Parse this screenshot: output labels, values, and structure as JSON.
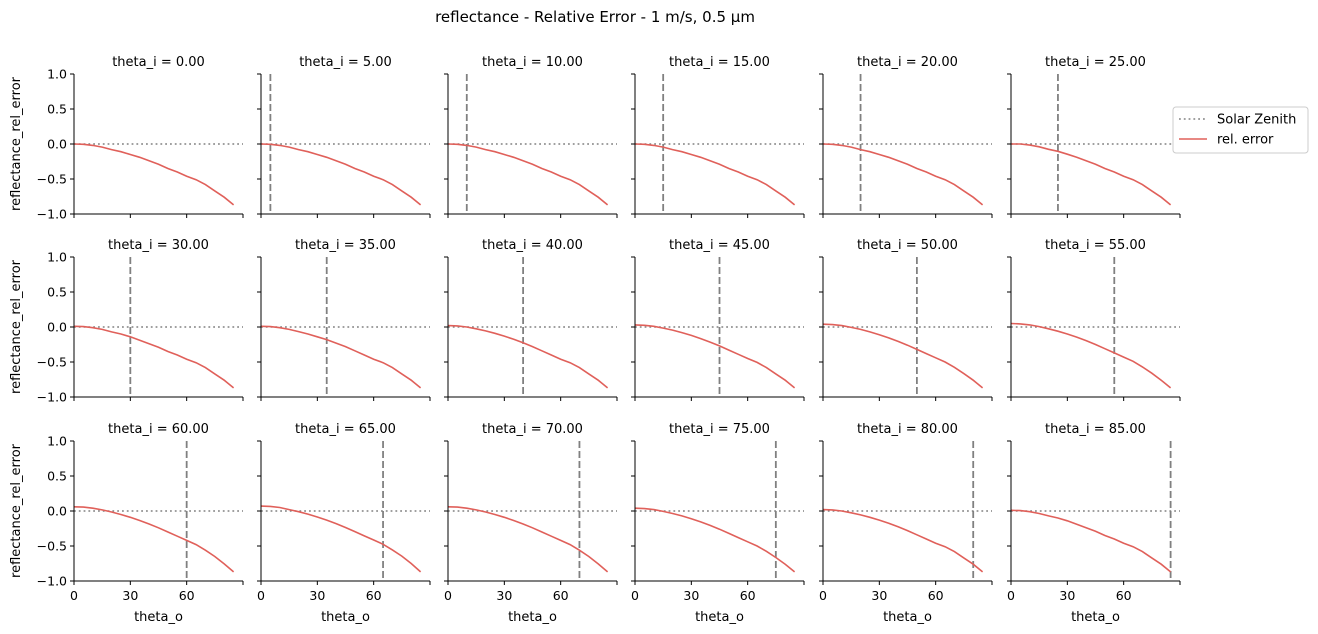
{
  "figure": {
    "title": "reflectance - Relative Error - 1 m/s, 0.5 µm"
  },
  "legend": {
    "placement": "right",
    "entries": [
      {
        "label": "Solar Zenith",
        "style": "dotted",
        "color": "#808080"
      },
      {
        "label": "rel. error",
        "style": "solid",
        "color": "#e0605a"
      }
    ]
  },
  "colors": {
    "error_line": "#e0605a",
    "reference_line": "#808080",
    "axis": "#000000"
  },
  "chart_data": {
    "type": "line",
    "layout": {
      "rows": 3,
      "cols": 6
    },
    "xlabel": "theta_o",
    "ylabel": "reflectance_rel_error",
    "xlim": [
      0,
      90
    ],
    "ylim": [
      -1.0,
      1.0
    ],
    "xticks": [
      0,
      30,
      60
    ],
    "yticks": [
      1.0,
      0.5,
      0.0,
      -0.5,
      -1.0
    ],
    "ytick_labels": [
      "1.0",
      "0.5",
      "0.0",
      "−0.5",
      "−1.0"
    ],
    "grid": false,
    "x": [
      0,
      5,
      10,
      15,
      20,
      25,
      30,
      35,
      40,
      45,
      50,
      55,
      60,
      65,
      70,
      75,
      80,
      85
    ],
    "zero_reference": 0.0,
    "panels": [
      {
        "title": "theta_i = 0.00",
        "theta_i": 0,
        "values": [
          0.0,
          -0.005,
          -0.02,
          -0.045,
          -0.08,
          -0.11,
          -0.15,
          -0.19,
          -0.24,
          -0.29,
          -0.35,
          -0.4,
          -0.46,
          -0.51,
          -0.58,
          -0.67,
          -0.76,
          -0.87
        ]
      },
      {
        "title": "theta_i = 5.00",
        "theta_i": 5,
        "values": [
          0.0,
          -0.005,
          -0.02,
          -0.045,
          -0.08,
          -0.11,
          -0.15,
          -0.19,
          -0.24,
          -0.29,
          -0.35,
          -0.4,
          -0.46,
          -0.51,
          -0.58,
          -0.67,
          -0.76,
          -0.87
        ]
      },
      {
        "title": "theta_i = 10.00",
        "theta_i": 10,
        "values": [
          0.0,
          -0.005,
          -0.02,
          -0.045,
          -0.08,
          -0.11,
          -0.15,
          -0.19,
          -0.24,
          -0.29,
          -0.35,
          -0.4,
          -0.46,
          -0.51,
          -0.58,
          -0.67,
          -0.76,
          -0.87
        ]
      },
      {
        "title": "theta_i = 15.00",
        "theta_i": 15,
        "values": [
          0.0,
          -0.005,
          -0.02,
          -0.045,
          -0.08,
          -0.11,
          -0.15,
          -0.19,
          -0.24,
          -0.29,
          -0.35,
          -0.4,
          -0.46,
          -0.51,
          -0.58,
          -0.67,
          -0.76,
          -0.87
        ]
      },
      {
        "title": "theta_i = 20.00",
        "theta_i": 20,
        "values": [
          0.0,
          -0.005,
          -0.02,
          -0.045,
          -0.08,
          -0.11,
          -0.15,
          -0.19,
          -0.24,
          -0.29,
          -0.35,
          -0.4,
          -0.46,
          -0.51,
          -0.58,
          -0.67,
          -0.76,
          -0.87
        ]
      },
      {
        "title": "theta_i = 25.00",
        "theta_i": 25,
        "values": [
          0.0,
          0.0,
          -0.015,
          -0.04,
          -0.075,
          -0.105,
          -0.145,
          -0.19,
          -0.24,
          -0.29,
          -0.35,
          -0.4,
          -0.46,
          -0.51,
          -0.58,
          -0.67,
          -0.76,
          -0.87
        ]
      },
      {
        "title": "theta_i = 30.00",
        "theta_i": 30,
        "values": [
          0.01,
          0.005,
          -0.01,
          -0.035,
          -0.07,
          -0.1,
          -0.14,
          -0.19,
          -0.24,
          -0.29,
          -0.35,
          -0.4,
          -0.46,
          -0.51,
          -0.58,
          -0.67,
          -0.76,
          -0.87
        ]
      },
      {
        "title": "theta_i = 35.00",
        "theta_i": 35,
        "values": [
          0.01,
          0.005,
          -0.01,
          -0.035,
          -0.065,
          -0.1,
          -0.14,
          -0.18,
          -0.23,
          -0.28,
          -0.34,
          -0.4,
          -0.46,
          -0.51,
          -0.58,
          -0.67,
          -0.76,
          -0.87
        ]
      },
      {
        "title": "theta_i = 40.00",
        "theta_i": 40,
        "values": [
          0.02,
          0.015,
          0.0,
          -0.025,
          -0.055,
          -0.09,
          -0.13,
          -0.175,
          -0.225,
          -0.28,
          -0.34,
          -0.4,
          -0.46,
          -0.51,
          -0.58,
          -0.67,
          -0.76,
          -0.87
        ]
      },
      {
        "title": "theta_i = 45.00",
        "theta_i": 45,
        "values": [
          0.03,
          0.025,
          0.01,
          -0.015,
          -0.045,
          -0.08,
          -0.12,
          -0.165,
          -0.215,
          -0.27,
          -0.33,
          -0.39,
          -0.45,
          -0.505,
          -0.58,
          -0.67,
          -0.76,
          -0.87
        ]
      },
      {
        "title": "theta_i = 50.00",
        "theta_i": 50,
        "values": [
          0.04,
          0.035,
          0.02,
          -0.005,
          -0.035,
          -0.07,
          -0.11,
          -0.155,
          -0.205,
          -0.26,
          -0.32,
          -0.38,
          -0.44,
          -0.5,
          -0.575,
          -0.665,
          -0.76,
          -0.87
        ]
      },
      {
        "title": "theta_i = 55.00",
        "theta_i": 55,
        "values": [
          0.05,
          0.045,
          0.03,
          0.005,
          -0.025,
          -0.06,
          -0.1,
          -0.145,
          -0.195,
          -0.25,
          -0.31,
          -0.37,
          -0.43,
          -0.49,
          -0.57,
          -0.66,
          -0.76,
          -0.87
        ]
      },
      {
        "title": "theta_i = 60.00",
        "theta_i": 60,
        "values": [
          0.06,
          0.055,
          0.04,
          0.015,
          -0.015,
          -0.05,
          -0.09,
          -0.135,
          -0.185,
          -0.24,
          -0.3,
          -0.36,
          -0.42,
          -0.48,
          -0.56,
          -0.65,
          -0.755,
          -0.87
        ]
      },
      {
        "title": "theta_i = 65.00",
        "theta_i": 65,
        "values": [
          0.07,
          0.065,
          0.05,
          0.02,
          -0.01,
          -0.045,
          -0.085,
          -0.13,
          -0.18,
          -0.235,
          -0.295,
          -0.355,
          -0.415,
          -0.475,
          -0.555,
          -0.645,
          -0.75,
          -0.87
        ]
      },
      {
        "title": "theta_i = 70.00",
        "theta_i": 70,
        "values": [
          0.06,
          0.055,
          0.04,
          0.015,
          -0.015,
          -0.05,
          -0.09,
          -0.135,
          -0.185,
          -0.24,
          -0.3,
          -0.36,
          -0.42,
          -0.48,
          -0.56,
          -0.65,
          -0.755,
          -0.87
        ]
      },
      {
        "title": "theta_i = 75.00",
        "theta_i": 75,
        "values": [
          0.04,
          0.035,
          0.02,
          -0.005,
          -0.035,
          -0.07,
          -0.11,
          -0.155,
          -0.205,
          -0.26,
          -0.32,
          -0.38,
          -0.44,
          -0.5,
          -0.575,
          -0.665,
          -0.76,
          -0.87
        ]
      },
      {
        "title": "theta_i = 80.00",
        "theta_i": 80,
        "values": [
          0.02,
          0.015,
          0.0,
          -0.025,
          -0.055,
          -0.09,
          -0.13,
          -0.175,
          -0.225,
          -0.28,
          -0.34,
          -0.4,
          -0.46,
          -0.51,
          -0.58,
          -0.67,
          -0.76,
          -0.87
        ]
      },
      {
        "title": "theta_i = 85.00",
        "theta_i": 85,
        "values": [
          0.01,
          0.005,
          -0.01,
          -0.035,
          -0.07,
          -0.1,
          -0.14,
          -0.19,
          -0.24,
          -0.29,
          -0.35,
          -0.4,
          -0.46,
          -0.51,
          -0.58,
          -0.67,
          -0.76,
          -0.87
        ]
      }
    ]
  }
}
